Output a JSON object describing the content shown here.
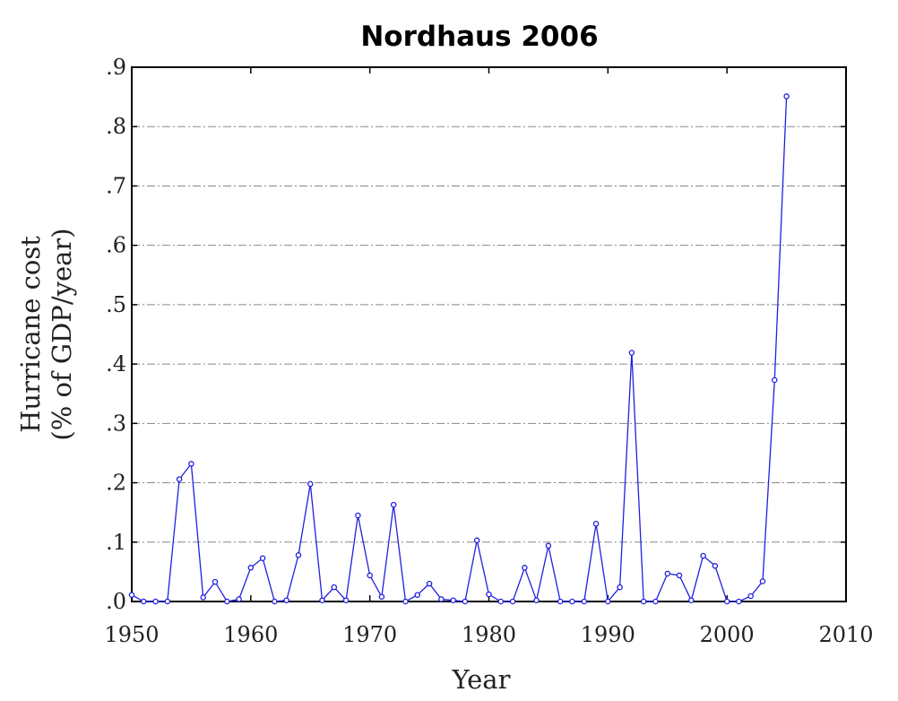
{
  "chart_data": {
    "type": "line",
    "title": "Nordhaus 2006",
    "xlabel": "Year",
    "ylabel_lines": [
      "Hurricane cost",
      "(% of GDP/year)"
    ],
    "xlim": [
      1950,
      2010
    ],
    "ylim": [
      0,
      0.9
    ],
    "xticks": [
      1950,
      1960,
      1970,
      1980,
      1990,
      2000,
      2010
    ],
    "xtick_labels": [
      "1950",
      "1960",
      "1970",
      "1980",
      "1990",
      "2000",
      "2010"
    ],
    "yticks": [
      0,
      0.1,
      0.2,
      0.3,
      0.4,
      0.5,
      0.6,
      0.7,
      0.8,
      0.9
    ],
    "ytick_labels": [
      ".0",
      ".1",
      ".2",
      ".3",
      ".4",
      ".5",
      ".6",
      ".7",
      ".8",
      ".9"
    ],
    "grid": "horizontal dashed",
    "marker": "open circle",
    "line_color": "#2020e0",
    "series": [
      {
        "x": [
          1950,
          1951,
          1952,
          1953,
          1954,
          1955,
          1956,
          1957,
          1958,
          1959,
          1960,
          1961,
          1962,
          1963,
          1964,
          1965,
          1966,
          1967,
          1968,
          1969,
          1970,
          1971,
          1972,
          1973,
          1974,
          1975,
          1976,
          1977,
          1978,
          1979,
          1980,
          1981,
          1982,
          1983,
          1984,
          1985,
          1986,
          1987,
          1988,
          1989,
          1990,
          1991,
          1992,
          1993,
          1994,
          1995,
          1996,
          1997,
          1998,
          1999,
          2000,
          2001,
          2002,
          2003,
          2004,
          2005
        ],
        "values": [
          0.011,
          0.0,
          0.0,
          0.0,
          0.206,
          0.232,
          0.007,
          0.033,
          0.0,
          0.004,
          0.057,
          0.073,
          0.0,
          0.002,
          0.078,
          0.198,
          0.002,
          0.024,
          0.002,
          0.145,
          0.044,
          0.008,
          0.163,
          0.0,
          0.011,
          0.03,
          0.004,
          0.002,
          0.0,
          0.103,
          0.012,
          0.0,
          0.0,
          0.057,
          0.002,
          0.094,
          0.0,
          0.0,
          0.0,
          0.131,
          0.0,
          0.024,
          0.419,
          0.0,
          0.0,
          0.047,
          0.044,
          0.002,
          0.077,
          0.06,
          0.0,
          0.0,
          0.009,
          0.034,
          0.373,
          0.851
        ]
      }
    ]
  }
}
